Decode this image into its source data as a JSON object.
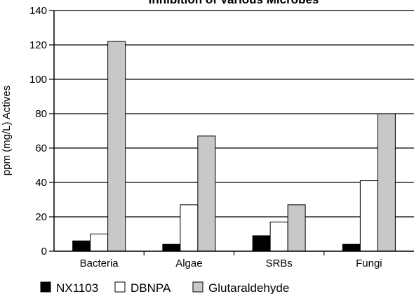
{
  "chart_data": {
    "type": "bar",
    "title": "Inhibition of Various Microbes",
    "xlabel": "",
    "ylabel": "ppm (mg/L) Actives",
    "ylim": [
      0,
      140
    ],
    "yticks": [
      0,
      20,
      40,
      60,
      80,
      100,
      120,
      140
    ],
    "grid": true,
    "legend": "bottom",
    "categories": [
      "Bacteria",
      "Algae",
      "SRBs",
      "Fungi"
    ],
    "series": [
      {
        "name": "NX1103",
        "color": "#000000",
        "values": [
          6,
          4,
          9,
          4
        ]
      },
      {
        "name": "DBNPA",
        "color": "#ffffff",
        "values": [
          10,
          27,
          17,
          41
        ]
      },
      {
        "name": "Glutaraldehyde",
        "color": "#c8c8c8",
        "values": [
          122,
          67,
          27,
          80
        ]
      }
    ]
  }
}
